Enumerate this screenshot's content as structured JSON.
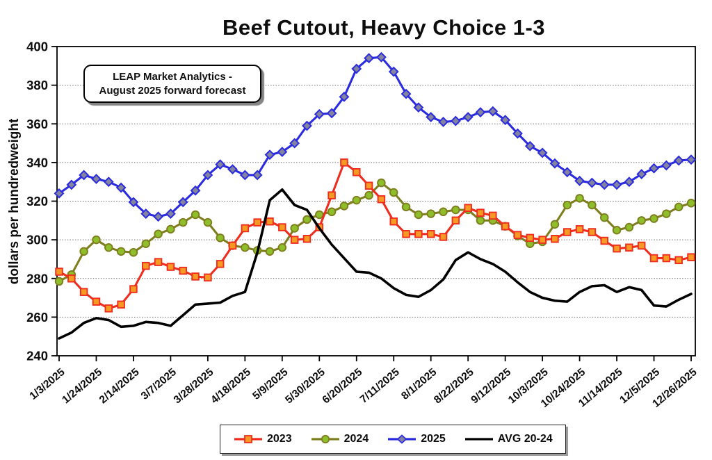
{
  "title": "Beef Cutout, Heavy Choice 1-3",
  "annotation": {
    "line1": "LEAP Market Analytics -",
    "line2": "August 2025 forward forecast"
  },
  "chart_data": {
    "type": "line",
    "title": "Beef Cutout, Heavy Choice 1-3",
    "xlabel": "",
    "ylabel": "dollars per hundredweight",
    "ylim": [
      240,
      400
    ],
    "ytick_step": 20,
    "y_tick_labels": [
      "400",
      "380",
      "360",
      "340",
      "320",
      "300",
      "280",
      "260",
      "240"
    ],
    "grid": "horizontal-dotted",
    "legend_position": "bottom-center",
    "weeks": 52,
    "x_tick_labels": [
      "1/3/2025",
      "1/24/2025",
      "2/14/2025",
      "3/7/2025",
      "3/28/2025",
      "4/18/2025",
      "5/9/2025",
      "5/30/2025",
      "6/20/2025",
      "7/11/2025",
      "8/1/2025",
      "8/22/2025",
      "9/12/2025",
      "10/3/2025",
      "10/24/2025",
      "11/14/2025",
      "12/5/2025",
      "12/26/2025"
    ],
    "x_tick_week_interval": 3,
    "series": [
      {
        "name": "2023",
        "color": "#ee2d1f",
        "marker": "square",
        "marker_fill": "#f79a23",
        "values": [
          283.5,
          280,
          273,
          268,
          264.5,
          266.5,
          274.5,
          286.5,
          288.5,
          286,
          284,
          281,
          280.5,
          287.5,
          297,
          306,
          309,
          309.5,
          306.5,
          300,
          300.5,
          306.5,
          323,
          340,
          335,
          328,
          321,
          309.5,
          303,
          303,
          303,
          301.5,
          310,
          316.5,
          314,
          312.5,
          307,
          302.5,
          301,
          300,
          300.5,
          304,
          305.5,
          304,
          299.5,
          295.5,
          296,
          297,
          290.5,
          290.5,
          289.5,
          291
        ]
      },
      {
        "name": "2024",
        "color": "#7e7e1e",
        "marker": "circle",
        "marker_fill": "#8fbe2b",
        "values": [
          278.5,
          282,
          294,
          300,
          296,
          294,
          293.5,
          298,
          303,
          305.5,
          309,
          313,
          309,
          301,
          297,
          296,
          294.5,
          294,
          296,
          306,
          310.5,
          313,
          314.5,
          317.5,
          320.5,
          323,
          329.5,
          324.5,
          317,
          313,
          313.5,
          314.5,
          315.5,
          315.5,
          310,
          310,
          307,
          302,
          298,
          299,
          308,
          318,
          321.5,
          318,
          311.5,
          305,
          306.5,
          310,
          311,
          313.5,
          317,
          319
        ]
      },
      {
        "name": "2025",
        "color": "#2b2be0",
        "marker": "diamond",
        "marker_fill": "#84849e",
        "values": [
          324,
          328.5,
          333.5,
          331.5,
          330,
          327,
          319.5,
          313.5,
          312,
          313.5,
          319.5,
          325.5,
          333.5,
          339,
          336.5,
          333.5,
          333.5,
          344,
          345.5,
          350,
          359,
          365,
          365.5,
          374,
          388.5,
          394,
          394.5,
          387,
          375.5,
          368.5,
          363.5,
          361,
          361.5,
          363.5,
          366,
          366.5,
          362,
          355,
          348.5,
          345,
          339.5,
          335,
          330.5,
          329.5,
          328.5,
          328.5,
          330,
          334,
          337,
          338.5,
          341,
          341.5
        ]
      },
      {
        "name": "AVG 20-24",
        "color": "#000000",
        "marker": "none",
        "marker_fill": "#000000",
        "values": [
          249,
          252,
          257,
          259.5,
          258.5,
          255,
          255.5,
          257.5,
          257,
          255.5,
          261,
          266.5,
          267,
          267.5,
          271,
          273,
          293.5,
          320.5,
          326,
          318,
          315.5,
          306,
          297.5,
          290.5,
          283.5,
          283,
          280,
          275,
          271.5,
          270.5,
          274,
          279.5,
          289.5,
          293.5,
          290,
          287.5,
          283.5,
          278,
          273,
          270,
          268.5,
          268,
          273,
          276,
          276.5,
          273,
          275.5,
          274,
          266,
          265.5,
          269,
          272
        ]
      }
    ]
  }
}
